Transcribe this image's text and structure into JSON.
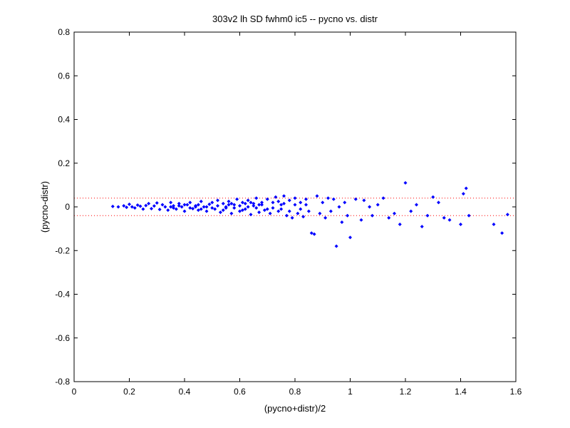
{
  "chart_data": {
    "type": "scatter",
    "title": "303v2 lh SD fwhm0 ic5 -- pycno vs. distr",
    "xlabel": "(pycno+distr)/2",
    "ylabel": "(pycno-distr)",
    "xlim": [
      0,
      1.6
    ],
    "ylim": [
      -0.8,
      0.8
    ],
    "x_ticks": [
      0,
      0.2,
      0.4,
      0.6,
      0.8,
      1,
      1.2,
      1.4,
      1.6
    ],
    "x_tick_labels": [
      "0",
      "0.2",
      "0.4",
      "0.6",
      "0.8",
      "1",
      "1.2",
      "1.4",
      "1.6"
    ],
    "y_ticks": [
      -0.8,
      -0.6,
      -0.4,
      -0.2,
      0,
      0.2,
      0.4,
      0.6,
      0.8
    ],
    "y_tick_labels": [
      "-0.8",
      "-0.6",
      "-0.4",
      "-0.2",
      "0",
      "0.2",
      "0.4",
      "0.6",
      "0.8"
    ],
    "grid": false,
    "marker_color": "#0000ff",
    "reference_line_color": "#ff0000",
    "reference_lines_y": [
      0.04,
      -0.04
    ],
    "points": [
      [
        0.14,
        0.002
      ],
      [
        0.16,
        0.0
      ],
      [
        0.18,
        0.005
      ],
      [
        0.19,
        -0.002
      ],
      [
        0.2,
        0.012
      ],
      [
        0.21,
        0.0
      ],
      [
        0.22,
        -0.005
      ],
      [
        0.23,
        0.008
      ],
      [
        0.24,
        0.003
      ],
      [
        0.25,
        -0.01
      ],
      [
        0.26,
        0.006
      ],
      [
        0.27,
        0.015
      ],
      [
        0.28,
        -0.008
      ],
      [
        0.29,
        0.004
      ],
      [
        0.3,
        0.018
      ],
      [
        0.31,
        -0.012
      ],
      [
        0.32,
        0.01
      ],
      [
        0.33,
        0.0
      ],
      [
        0.34,
        -0.015
      ],
      [
        0.35,
        0.02
      ],
      [
        0.36,
        0.005
      ],
      [
        0.37,
        -0.01
      ],
      [
        0.38,
        0.015
      ],
      [
        0.39,
        0.0
      ],
      [
        0.4,
        -0.02
      ],
      [
        0.41,
        0.01
      ],
      [
        0.42,
        0.02
      ],
      [
        0.43,
        -0.008
      ],
      [
        0.44,
        0.005
      ],
      [
        0.45,
        -0.015
      ],
      [
        0.46,
        0.025
      ],
      [
        0.47,
        0.0
      ],
      [
        0.48,
        -0.02
      ],
      [
        0.49,
        0.012
      ],
      [
        0.5,
        0.02
      ],
      [
        0.51,
        -0.01
      ],
      [
        0.52,
        0.03
      ],
      [
        0.53,
        -0.025
      ],
      [
        0.54,
        0.015
      ],
      [
        0.55,
        0.0
      ],
      [
        0.56,
        0.025
      ],
      [
        0.57,
        -0.03
      ],
      [
        0.58,
        0.01
      ],
      [
        0.59,
        0.035
      ],
      [
        0.6,
        -0.02
      ],
      [
        0.61,
        0.02
      ],
      [
        0.62,
        -0.01
      ],
      [
        0.63,
        0.03
      ],
      [
        0.64,
        -0.035
      ],
      [
        0.65,
        0.015
      ],
      [
        0.66,
        0.04
      ],
      [
        0.67,
        -0.025
      ],
      [
        0.68,
        0.02
      ],
      [
        0.69,
        -0.015
      ],
      [
        0.7,
        0.035
      ],
      [
        0.71,
        -0.03
      ],
      [
        0.72,
        0.02
      ],
      [
        0.73,
        0.045
      ],
      [
        0.74,
        -0.02
      ],
      [
        0.75,
        0.01
      ],
      [
        0.76,
        0.05
      ],
      [
        0.77,
        -0.04
      ],
      [
        0.78,
        0.03
      ],
      [
        0.79,
        -0.05
      ],
      [
        0.8,
        0.04
      ],
      [
        0.81,
        -0.03
      ],
      [
        0.82,
        0.02
      ],
      [
        0.83,
        -0.045
      ],
      [
        0.84,
        0.035
      ],
      [
        0.85,
        -0.02
      ],
      [
        0.86,
        -0.12
      ],
      [
        0.87,
        -0.125
      ],
      [
        0.88,
        0.05
      ],
      [
        0.89,
        -0.03
      ],
      [
        0.9,
        0.02
      ],
      [
        0.91,
        -0.05
      ],
      [
        0.92,
        0.04
      ],
      [
        0.93,
        -0.02
      ],
      [
        0.94,
        0.035
      ],
      [
        0.95,
        -0.18
      ],
      [
        0.96,
        0.0
      ],
      [
        0.97,
        -0.07
      ],
      [
        0.98,
        0.02
      ],
      [
        0.99,
        -0.04
      ],
      [
        1.0,
        -0.14
      ],
      [
        1.02,
        0.035
      ],
      [
        1.04,
        -0.06
      ],
      [
        1.05,
        0.03
      ],
      [
        1.07,
        0.0
      ],
      [
        1.08,
        -0.04
      ],
      [
        1.1,
        0.01
      ],
      [
        1.12,
        0.04
      ],
      [
        1.14,
        -0.05
      ],
      [
        1.16,
        -0.03
      ],
      [
        1.18,
        -0.08
      ],
      [
        1.2,
        0.11
      ],
      [
        1.22,
        -0.02
      ],
      [
        1.24,
        0.01
      ],
      [
        1.26,
        -0.09
      ],
      [
        1.28,
        -0.04
      ],
      [
        1.3,
        0.045
      ],
      [
        1.32,
        0.02
      ],
      [
        1.34,
        -0.05
      ],
      [
        1.36,
        -0.06
      ],
      [
        1.4,
        -0.08
      ],
      [
        1.41,
        0.06
      ],
      [
        1.42,
        0.085
      ],
      [
        1.43,
        -0.04
      ],
      [
        1.52,
        -0.08
      ],
      [
        1.55,
        -0.12
      ],
      [
        1.57,
        -0.035
      ],
      [
        0.35,
        0.0
      ],
      [
        0.45,
        0.01
      ],
      [
        0.55,
        -0.005
      ],
      [
        0.65,
        0.005
      ],
      [
        0.75,
        -0.01
      ],
      [
        0.36,
        -0.005
      ],
      [
        0.46,
        -0.01
      ],
      [
        0.56,
        0.01
      ],
      [
        0.66,
        -0.005
      ],
      [
        0.76,
        0.015
      ],
      [
        0.38,
        0.005
      ],
      [
        0.48,
        0.0
      ],
      [
        0.58,
        -0.005
      ],
      [
        0.68,
        0.01
      ],
      [
        0.78,
        -0.02
      ],
      [
        0.4,
        0.01
      ],
      [
        0.5,
        -0.005
      ],
      [
        0.6,
        0.005
      ],
      [
        0.7,
        -0.01
      ],
      [
        0.8,
        0.01
      ],
      [
        0.42,
        -0.005
      ],
      [
        0.52,
        0.005
      ],
      [
        0.62,
        0.015
      ],
      [
        0.72,
        -0.005
      ],
      [
        0.82,
        -0.01
      ],
      [
        0.44,
        0.0
      ],
      [
        0.54,
        -0.015
      ],
      [
        0.64,
        0.02
      ],
      [
        0.74,
        0.025
      ],
      [
        0.84,
        0.01
      ],
      [
        0.57,
        0.015
      ],
      [
        0.61,
        -0.015
      ],
      [
        0.63,
        0.0
      ],
      [
        0.67,
        0.01
      ]
    ]
  }
}
